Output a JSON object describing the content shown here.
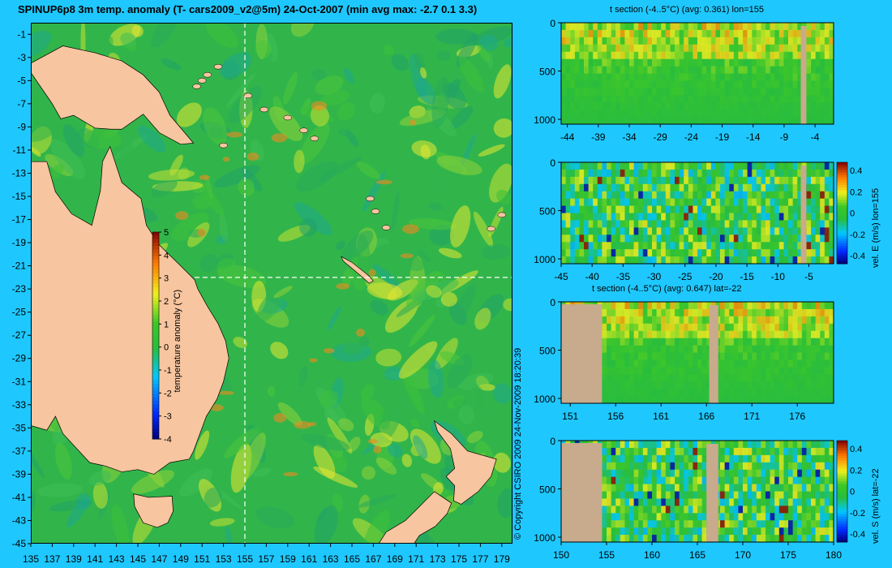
{
  "title": "SPINUP6p8 3m temp. anomaly (T- cars2009_v2@5m) 24-Oct-2007 (min avg max: -2.7 0.1 3.3)",
  "copyright": "© Copyright CSIRO 2009  24-Nov-2009 18:20:39",
  "colors": {
    "background": "#1ec8ff",
    "land": "#f7c59f",
    "section_land": "#c8aa8c",
    "ocean_base": "#31b54a"
  },
  "chart_data": [
    {
      "type": "heatmap",
      "id": "map",
      "title": "SPINUP6p8 3m temp. anomaly (T- cars2009_v2@5m) 24-Oct-2007 (min avg max: -2.7 0.1 3.3)",
      "x_ticks": [
        135,
        137,
        139,
        141,
        143,
        145,
        147,
        149,
        151,
        153,
        155,
        157,
        159,
        161,
        163,
        165,
        167,
        169,
        171,
        173,
        175,
        177,
        179
      ],
      "y_ticks": [
        -1,
        -3,
        -5,
        -7,
        -9,
        -11,
        -13,
        -15,
        -17,
        -19,
        -21,
        -23,
        -25,
        -27,
        -29,
        -31,
        -33,
        -35,
        -37,
        -39,
        -41,
        -43,
        -45
      ],
      "xlim": [
        135,
        180
      ],
      "ylim": [
        -45,
        0
      ],
      "section_lines": {
        "lon": 155,
        "lat": -22
      },
      "colorbar": {
        "label": "temperature anomaly (°C)",
        "ticks": [
          5,
          4,
          3,
          2,
          1,
          0,
          -1,
          -2,
          -3,
          -4
        ],
        "range": [
          -4,
          5
        ]
      }
    },
    {
      "type": "heatmap",
      "id": "panel1",
      "title": "t section (-4..5°C) (avg: 0.361) lon=155",
      "x_ticks": [
        -44,
        -39,
        -34,
        -29,
        -24,
        -19,
        -14,
        -9,
        -4
      ],
      "xlim": [
        -45,
        -1
      ],
      "y_ticks": [
        0,
        500,
        1000
      ],
      "ylim": [
        0,
        1050
      ],
      "colorbar": null
    },
    {
      "type": "heatmap",
      "id": "panel2",
      "title": "",
      "x_ticks": [
        -45,
        -40,
        -35,
        -30,
        -25,
        -20,
        -15,
        -10,
        -5
      ],
      "xlim": [
        -45,
        -1
      ],
      "y_ticks": [
        0,
        500,
        1000
      ],
      "ylim": [
        0,
        1050
      ],
      "colorbar": {
        "label": "vel. E (m/s) lon=155",
        "ticks": [
          "0.4",
          "0.2",
          "0",
          "-0.2",
          "-0.4"
        ],
        "range": [
          -0.4,
          0.4
        ]
      }
    },
    {
      "type": "heatmap",
      "id": "panel3",
      "title": "t section (-4..5°C) (avg: 0.647) lat=-22",
      "x_ticks": [
        151,
        156,
        161,
        166,
        171,
        176
      ],
      "xlim": [
        150,
        180
      ],
      "y_ticks": [
        0,
        500,
        1000
      ],
      "ylim": [
        0,
        1050
      ],
      "colorbar": null
    },
    {
      "type": "heatmap",
      "id": "panel4",
      "title": "",
      "x_ticks": [
        150,
        155,
        160,
        165,
        170,
        175,
        180
      ],
      "xlim": [
        150,
        180
      ],
      "y_ticks": [
        0,
        500,
        1000
      ],
      "ylim": [
        0,
        1050
      ],
      "colorbar": {
        "label": "vel. S (m/s) lat=-22",
        "ticks": [
          "0.4",
          "0.2",
          "0",
          "-0.2",
          "-0.4"
        ],
        "range": [
          -0.4,
          0.4
        ]
      }
    }
  ]
}
